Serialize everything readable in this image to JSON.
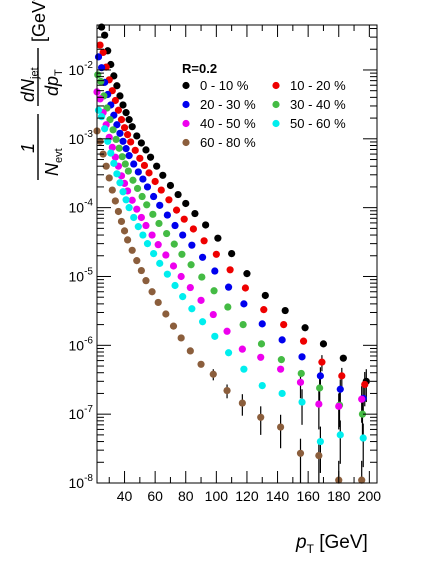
{
  "chart_data": {
    "type": "scatter",
    "xlabel": {
      "main": "p",
      "sub": "T",
      "unit": " [GeV]"
    },
    "ylabel": {
      "numerator": "1",
      "denominator": "N",
      "denominator_sub": "evt",
      "frac2_num": "dN",
      "frac2_num_sub": "jet",
      "frac2_den": "dp",
      "frac2_den_sub": "T",
      "unit_open": "[GeV",
      "unit_exp": "-1",
      "unit_close": "]"
    },
    "x_ticks": [
      40,
      60,
      80,
      100,
      120,
      140,
      160,
      180,
      200
    ],
    "y_ticks": [
      {
        "base": "10",
        "exp": "-8",
        "value": 1e-08
      },
      {
        "base": "10",
        "exp": "-7",
        "value": 1e-07
      },
      {
        "base": "10",
        "exp": "-6",
        "value": 1e-06
      },
      {
        "base": "10",
        "exp": "-5",
        "value": 1e-05
      },
      {
        "base": "10",
        "exp": "-4",
        "value": 0.0001
      },
      {
        "base": "10",
        "exp": "-3",
        "value": 0.001
      },
      {
        "base": "10",
        "exp": "-2",
        "value": 0.01
      }
    ],
    "xlim": [
      22,
      205
    ],
    "ylim": [
      1e-08,
      0.045
    ],
    "log_y": true,
    "grid": false,
    "legend": {
      "placement": "top-right",
      "title": "R=0.2",
      "columns": 2
    },
    "series": [
      {
        "name": "0 - 10 %",
        "color": "#000000",
        "x": [
          25,
          27,
          29,
          31,
          33,
          35,
          37,
          39,
          41,
          43,
          45,
          48,
          51,
          54,
          57,
          61,
          65,
          70,
          75,
          80,
          86,
          93,
          101,
          110,
          120,
          132,
          145,
          158,
          170,
          183,
          198
        ],
        "y": [
          0.042,
          0.032,
          0.019,
          0.012,
          0.0082,
          0.0059,
          0.0042,
          0.0031,
          0.0024,
          0.0019,
          0.0015,
          0.0011,
          0.00087,
          0.00069,
          0.00054,
          0.0004,
          0.000295,
          0.00021,
          0.000155,
          0.000115,
          8.2e-05,
          5.6e-05,
          3.6e-05,
          2.15e-05,
          1.1e-05,
          5.3e-06,
          3.2e-06,
          1.8e-06,
          1.05e-06,
          6.5e-07,
          3e-07
        ],
        "err_lo": [
          0,
          0,
          0,
          0,
          0,
          0,
          0,
          0,
          0,
          0,
          0,
          0,
          0,
          0,
          0,
          0,
          0,
          0,
          0,
          0,
          0,
          0,
          0,
          0,
          0,
          0,
          0,
          0,
          0,
          0,
          1.5e-07
        ],
        "err_hi": [
          0,
          0,
          0,
          0,
          0,
          0,
          0,
          0,
          0,
          0,
          0,
          0,
          0,
          0,
          0,
          0,
          0,
          0,
          0,
          0,
          0,
          0,
          0,
          0,
          0,
          0,
          0,
          0,
          0,
          0,
          1.5e-07
        ]
      },
      {
        "name": "10 - 20 %",
        "color": "#ee0000",
        "x": [
          24,
          26,
          28,
          30,
          32,
          34,
          36,
          38,
          40,
          42,
          44,
          47,
          50,
          53,
          56,
          60,
          64,
          69,
          74,
          79,
          85,
          92,
          100,
          109,
          119,
          131,
          144,
          157,
          169,
          182,
          197
        ],
        "y": [
          0.023,
          0.018,
          0.011,
          0.0072,
          0.005,
          0.0036,
          0.0026,
          0.0019,
          0.00145,
          0.00115,
          0.0009,
          0.00068,
          0.00052,
          0.00041,
          0.00032,
          0.00024,
          0.00018,
          0.00013,
          9.2e-05,
          6.8e-05,
          4.9e-05,
          3.3e-05,
          2.1e-05,
          1.25e-05,
          6.8e-06,
          3.3e-06,
          2e-06,
          1.15e-06,
          5.7e-07,
          3.6e-07,
          2.7e-07
        ],
        "err_lo": [
          0,
          0,
          0,
          0,
          0,
          0,
          0,
          0,
          0,
          0,
          0,
          0,
          0,
          0,
          0,
          0,
          0,
          0,
          0,
          0,
          0,
          0,
          0,
          0,
          0,
          0,
          0,
          0,
          1.5e-07,
          1.1e-07,
          1.4e-07
        ],
        "err_hi": [
          0,
          0,
          0,
          0,
          0,
          0,
          0,
          0,
          0,
          0,
          0,
          0,
          0,
          0,
          0,
          0,
          0,
          0,
          0,
          0,
          0,
          0,
          0,
          0,
          0,
          0,
          0,
          0,
          1.5e-07,
          1.1e-07,
          1.4e-07
        ]
      },
      {
        "name": "20 - 30 %",
        "color": "#0000ee",
        "x": [
          23,
          25,
          27,
          29,
          31,
          33,
          35,
          37,
          39,
          41,
          43,
          46,
          49,
          52,
          55,
          59,
          63,
          68,
          73,
          78,
          84,
          91,
          99,
          108,
          118,
          130,
          143,
          156,
          168,
          181,
          196
        ],
        "y": [
          0.0155,
          0.0108,
          0.0066,
          0.0044,
          0.0031,
          0.0022,
          0.0016,
          0.0012,
          0.00092,
          0.00072,
          0.00057,
          0.00043,
          0.00033,
          0.00026,
          0.0002,
          0.000145,
          0.000108,
          7.8e-05,
          5.5e-05,
          4e-05,
          2.85e-05,
          1.9e-05,
          1.2e-05,
          7e-06,
          4e-06,
          2.05e-06,
          1.2e-06,
          6.8e-07,
          3.6e-07,
          2.3e-07,
          1.7e-07
        ],
        "err_lo": [
          0,
          0,
          0,
          0,
          0,
          0,
          0,
          0,
          0,
          0,
          0,
          0,
          0,
          0,
          0,
          0,
          0,
          0,
          0,
          0,
          0,
          0,
          0,
          0,
          0,
          0,
          0,
          0,
          1.2e-07,
          9e-08,
          8e-08
        ],
        "err_hi": [
          0,
          0,
          0,
          0,
          0,
          0,
          0,
          0,
          0,
          0,
          0,
          0,
          0,
          0,
          0,
          0,
          0,
          0,
          0,
          0,
          0,
          0,
          0,
          0,
          0,
          0,
          0,
          0,
          1.2e-07,
          9e-08,
          8e-08
        ]
      },
      {
        "name": "30 - 40 %",
        "color": "#44bb44",
        "x": [
          22.5,
          24.5,
          26.5,
          28.5,
          30.5,
          32.5,
          34.5,
          36.5,
          38.5,
          40.5,
          42.5,
          45.5,
          48.5,
          51.5,
          54.5,
          58.5,
          62.5,
          67.5,
          72.5,
          77.5,
          83.5,
          90.5,
          98.5,
          107.5,
          117.5,
          129.5,
          142.5,
          155.5,
          167.5,
          180.5,
          195.5
        ],
        "y": [
          0.0085,
          0.0068,
          0.0042,
          0.0028,
          0.0019,
          0.00135,
          0.00098,
          0.00073,
          0.00055,
          0.00043,
          0.00034,
          0.00025,
          0.00019,
          0.000145,
          0.00011,
          8e-05,
          5.9e-05,
          4.2e-05,
          2.95e-05,
          2.1e-05,
          1.48e-05,
          9.8e-06,
          6.2e-06,
          3.6e-06,
          2e-06,
          1.05e-06,
          6.2e-07,
          3.9e-07,
          2.4e-07,
          1.35e-07,
          1e-07
        ],
        "err_lo": [
          0,
          0,
          0,
          0,
          0,
          0,
          0,
          0,
          0,
          0,
          0,
          0,
          0,
          0,
          0,
          0,
          0,
          0,
          0,
          0,
          0,
          0,
          0,
          0,
          0,
          0,
          0,
          0,
          1e-07,
          7e-08,
          6e-08
        ],
        "err_hi": [
          0,
          0,
          0,
          0,
          0,
          0,
          0,
          0,
          0,
          0,
          0,
          0,
          0,
          0,
          0,
          0,
          0,
          0,
          0,
          0,
          0,
          0,
          0,
          0,
          0,
          0,
          0,
          0,
          1e-07,
          7e-08,
          6e-08
        ]
      },
      {
        "name": "40 - 50 %",
        "color": "#ee00ee",
        "x": [
          22,
          24,
          26,
          28,
          30,
          32,
          34,
          36,
          38,
          40,
          42,
          45,
          48,
          51,
          54,
          58,
          62,
          67,
          72,
          77,
          83,
          90,
          98,
          107,
          117,
          129,
          142,
          155,
          167,
          180,
          195
        ],
        "y": [
          0.0048,
          0.0038,
          0.0024,
          0.0016,
          0.00105,
          0.00075,
          0.00054,
          0.0004,
          0.00029,
          0.000225,
          0.000175,
          0.000128,
          9.5e-05,
          7.2e-05,
          5.5e-05,
          4e-05,
          2.9e-05,
          2.05e-05,
          1.42e-05,
          1e-05,
          6.9e-06,
          4.5e-06,
          2.8e-06,
          1.6e-06,
          8.8e-07,
          6.7e-07,
          4.5e-07,
          2.9e-07,
          1.4e-07,
          1.3e-07,
          1.65e-07
        ],
        "err_lo": [
          0,
          0,
          0,
          0,
          0,
          0,
          0,
          0,
          0,
          0,
          0,
          0,
          0,
          0,
          0,
          0,
          0,
          0,
          0,
          0,
          0,
          0,
          0,
          0,
          0,
          0,
          0,
          1.2e-07,
          8e-08,
          7e-08,
          9e-08
        ],
        "err_hi": [
          0,
          0,
          0,
          0,
          0,
          0,
          0,
          0,
          0,
          0,
          0,
          0,
          0,
          0,
          0,
          0,
          0,
          0,
          0,
          0,
          0,
          0,
          0,
          0,
          0,
          0,
          0,
          1.2e-07,
          8e-08,
          7e-08,
          9e-08
        ]
      },
      {
        "name": "50 - 60 %",
        "color": "#00eeee",
        "x": [
          23,
          25,
          27,
          29,
          31,
          33,
          35,
          37,
          39,
          41,
          43,
          46,
          49,
          52,
          55,
          59,
          63,
          68,
          73,
          78,
          84,
          91,
          99,
          108,
          118,
          130,
          143,
          156,
          168,
          181,
          196
        ],
        "y": [
          0.0026,
          0.0021,
          0.0014,
          0.00092,
          0.00062,
          0.00044,
          0.00031,
          0.00023,
          0.00017,
          0.00013,
          0.0001,
          7.2e-05,
          5.3e-05,
          4e-05,
          3e-05,
          2.15e-05,
          1.55e-05,
          1.08e-05,
          7.4e-06,
          5.1e-06,
          3.4e-06,
          2.2e-06,
          1.35e-06,
          7.8e-07,
          4.5e-07,
          2.6e-07,
          2e-07,
          1.5e-07,
          4e-08,
          5e-08,
          4.5e-08
        ],
        "err_lo": [
          0,
          0,
          0,
          0,
          0,
          0,
          0,
          0,
          0,
          0,
          0,
          0,
          0,
          0,
          0,
          0,
          0,
          0,
          0,
          0,
          0,
          0,
          0,
          0,
          0,
          0,
          0,
          8e-08,
          2.6e-08,
          3.1e-08,
          2.8e-08
        ],
        "err_hi": [
          0,
          0,
          0,
          0,
          0,
          0,
          0,
          0,
          0,
          0,
          0,
          0,
          0,
          0,
          0,
          0,
          0,
          0,
          0,
          0,
          0,
          0,
          0,
          0,
          0,
          0,
          0,
          8e-08,
          2.6e-08,
          3.1e-08,
          2.8e-08
        ]
      },
      {
        "name": "60 - 80 %",
        "color": "#8b5e3c",
        "x": [
          22,
          24,
          26,
          28,
          30,
          32,
          34,
          36,
          38,
          40,
          42,
          45,
          48,
          51,
          54,
          58,
          62,
          67,
          72,
          77,
          83,
          90,
          98,
          107,
          117,
          129,
          142,
          155,
          167,
          180,
          195
        ],
        "y": [
          0.0013,
          0.00092,
          0.0006,
          0.0004,
          0.00027,
          0.00018,
          0.000125,
          8.8e-05,
          6.3e-05,
          4.6e-05,
          3.4e-05,
          2.4e-05,
          1.7e-05,
          1.22e-05,
          8.7e-06,
          6e-06,
          4.2e-06,
          2.85e-06,
          1.9e-06,
          1.28e-06,
          8.3e-07,
          5.3e-07,
          3.8e-07,
          2.2e-07,
          1.45e-07,
          9e-08,
          6.5e-08,
          2.7e-08,
          2.5e-08,
          1.1e-08,
          1.1e-08
        ],
        "err_lo": [
          0,
          0,
          0,
          0,
          0,
          0,
          0,
          0,
          0,
          0,
          0,
          0,
          0,
          0,
          0,
          0,
          0,
          0,
          0,
          0,
          0,
          0,
          7e-08,
          5e-08,
          5e-08,
          4e-08,
          3.3e-08,
          1.7e-08,
          1.5e-08,
          1e-08,
          1e-08
        ],
        "err_hi": [
          0,
          0,
          0,
          0,
          0,
          0,
          0,
          0,
          0,
          0,
          0,
          0,
          0,
          0,
          0,
          0,
          0,
          0,
          0,
          0,
          0,
          0,
          7e-08,
          5e-08,
          5e-08,
          4e-08,
          3.3e-08,
          1.7e-08,
          1.5e-08,
          1e-08,
          1e-08
        ]
      }
    ]
  }
}
